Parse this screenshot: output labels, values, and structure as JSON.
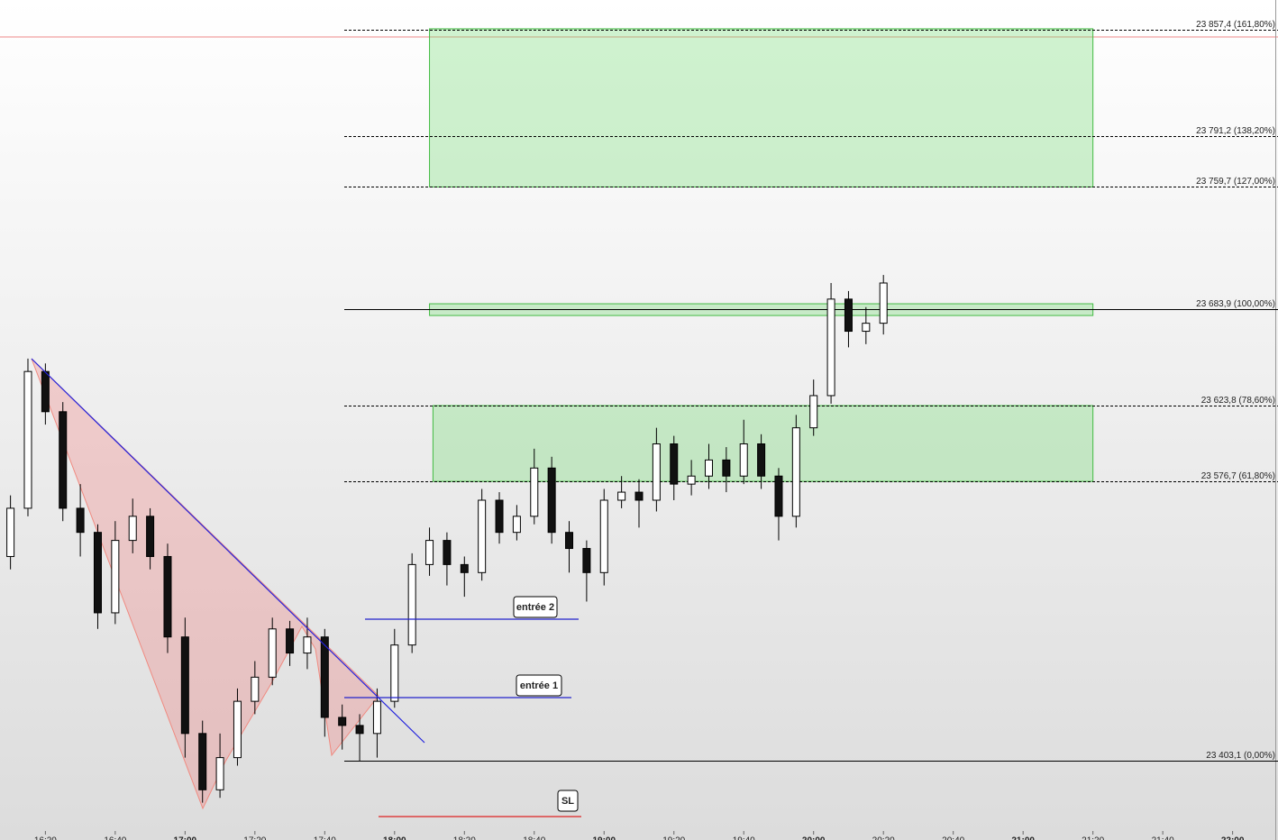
{
  "chart_data": {
    "type": "candlestick",
    "x": [
      "16:10",
      "16:15",
      "16:20",
      "16:25",
      "16:30",
      "16:35",
      "16:40",
      "16:45",
      "16:50",
      "16:55",
      "17:00",
      "17:05",
      "17:10",
      "17:15",
      "17:20",
      "17:25",
      "17:30",
      "17:35",
      "17:40",
      "17:45",
      "17:50",
      "17:55",
      "18:00",
      "18:05",
      "18:10",
      "18:15",
      "18:20",
      "18:25",
      "18:30",
      "18:35",
      "18:40",
      "18:45",
      "18:50",
      "18:55",
      "19:00",
      "19:05",
      "19:10",
      "19:15",
      "19:20",
      "19:25",
      "19:30",
      "19:35",
      "19:40",
      "19:45",
      "19:50",
      "19:55",
      "20:00",
      "20:05",
      "20:10",
      "20:15",
      "20:20"
    ],
    "open": [
      23530,
      23560,
      23645,
      23620,
      23560,
      23545,
      23495,
      23540,
      23555,
      23530,
      23480,
      23420,
      23385,
      23405,
      23440,
      23455,
      23485,
      23470,
      23480,
      23430,
      23425,
      23420,
      23440,
      23475,
      23525,
      23540,
      23525,
      23520,
      23565,
      23545,
      23555,
      23585,
      23545,
      23535,
      23520,
      23565,
      23570,
      23565,
      23600,
      23575,
      23580,
      23590,
      23580,
      23600,
      23580,
      23555,
      23610,
      23630,
      23690,
      23670,
      23675
    ],
    "high": [
      23568,
      23653,
      23650,
      23626,
      23575,
      23550,
      23552,
      23566,
      23560,
      23538,
      23492,
      23428,
      23420,
      23448,
      23465,
      23492,
      23490,
      23492,
      23485,
      23438,
      23432,
      23448,
      23485,
      23532,
      23548,
      23545,
      23530,
      23572,
      23570,
      23562,
      23597,
      23592,
      23552,
      23540,
      23572,
      23580,
      23578,
      23610,
      23605,
      23590,
      23600,
      23598,
      23615,
      23606,
      23585,
      23618,
      23640,
      23700,
      23695,
      23685,
      23705
    ],
    "low": [
      23522,
      23555,
      23612,
      23552,
      23530,
      23485,
      23488,
      23532,
      23522,
      23470,
      23405,
      23377,
      23380,
      23400,
      23432,
      23450,
      23462,
      23460,
      23418,
      23410,
      23403,
      23405,
      23436,
      23470,
      23518,
      23512,
      23505,
      23515,
      23538,
      23540,
      23550,
      23538,
      23520,
      23502,
      23512,
      23560,
      23548,
      23558,
      23565,
      23568,
      23572,
      23570,
      23575,
      23572,
      23540,
      23548,
      23605,
      23625,
      23660,
      23662,
      23668
    ],
    "close": [
      23560,
      23645,
      23620,
      23560,
      23545,
      23495,
      23540,
      23555,
      23530,
      23480,
      23420,
      23385,
      23405,
      23440,
      23455,
      23485,
      23470,
      23480,
      23430,
      23425,
      23420,
      23440,
      23475,
      23525,
      23540,
      23525,
      23520,
      23565,
      23545,
      23555,
      23585,
      23545,
      23535,
      23520,
      23565,
      23570,
      23565,
      23600,
      23575,
      23580,
      23590,
      23580,
      23600,
      23580,
      23555,
      23610,
      23630,
      23690,
      23670,
      23675,
      23700
    ],
    "xlim": [
      "16:07",
      "22:13"
    ],
    "ylim": [
      23353.8,
      23875.9
    ],
    "xticks": [
      "16:20",
      "16:40",
      "17:00",
      "17:20",
      "17:40",
      "18:00",
      "18:20",
      "18:40",
      "19:00",
      "19:20",
      "19:40",
      "20:00",
      "20:20",
      "20:40",
      "21:00",
      "21:20",
      "21:40",
      "22:00"
    ],
    "levels": [
      {
        "value": 23857.4,
        "label": "23 857,4 (161,80%)",
        "style": "dashed"
      },
      {
        "value": 23791.2,
        "label": "23 791,2 (138,20%)",
        "style": "dashed"
      },
      {
        "value": 23759.7,
        "label": "23 759,7 (127,00%)",
        "style": "dashed"
      },
      {
        "value": 23683.9,
        "label": "23 683,9 (100,00%)",
        "style": "solid"
      },
      {
        "value": 23623.8,
        "label": "23 623,8 (78,60%)",
        "style": "dashed"
      },
      {
        "value": 23576.7,
        "label": "23 576,7 (61,80%)",
        "style": "dashed"
      },
      {
        "value": 23403.1,
        "label": "23 403,1 (0,00%)",
        "style": "solid"
      }
    ],
    "zones": [
      {
        "x": [
          "18:10",
          "21:20"
        ],
        "y": [
          23858.0,
          23759.7
        ]
      },
      {
        "x": [
          "18:10",
          "21:20"
        ],
        "y": [
          23687.1,
          23679.8
        ]
      },
      {
        "x": [
          "18:11",
          "21:20"
        ],
        "y": [
          23623.8,
          23576.7
        ]
      }
    ],
    "annotations": [
      "entrée 2",
      "entrée 1",
      "SL"
    ]
  }
}
